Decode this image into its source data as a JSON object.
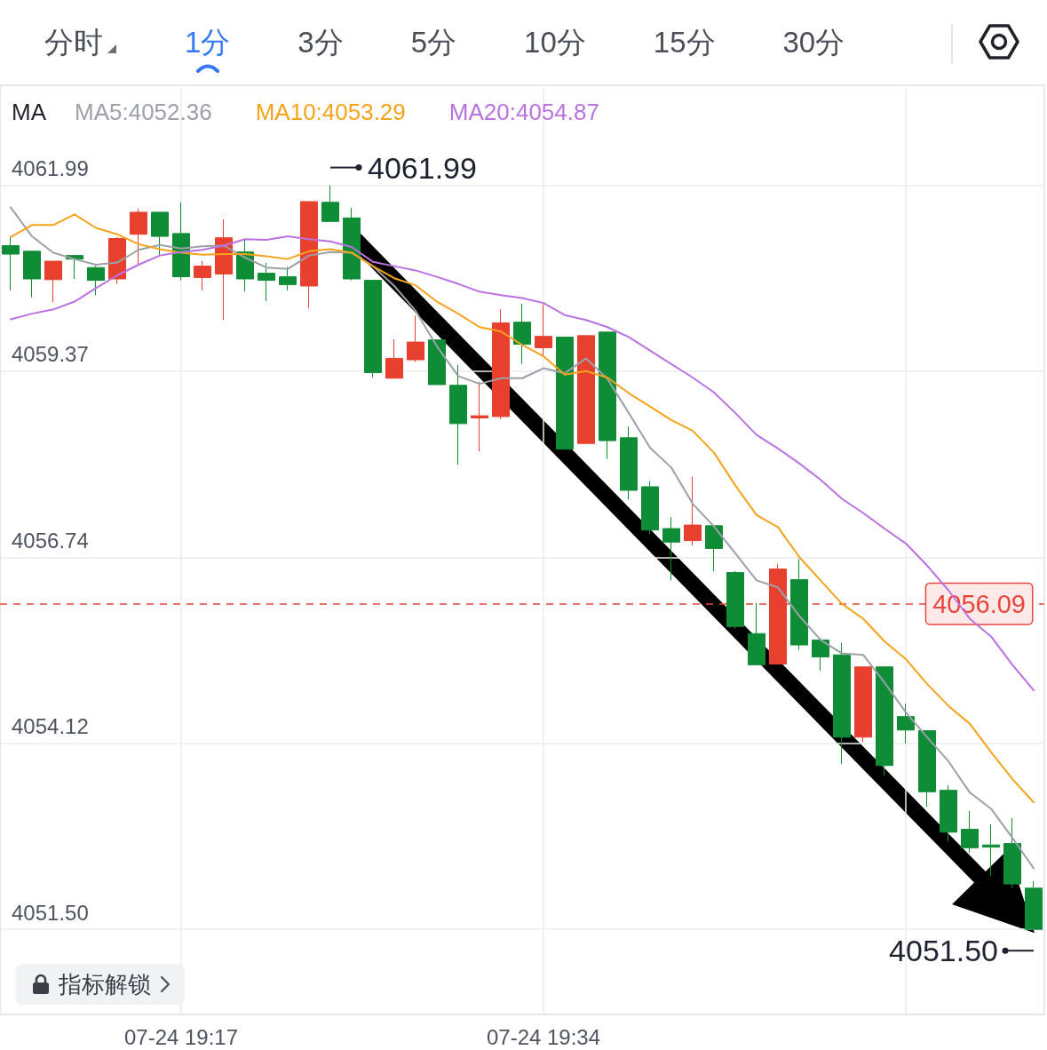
{
  "chart_data": {
    "type": "candlestick",
    "categories": [
      null,
      null,
      null,
      null,
      null,
      null,
      null,
      null,
      "07-24 19:17",
      null,
      null,
      null,
      null,
      null,
      null,
      null,
      null,
      null,
      null,
      null,
      null,
      null,
      null,
      null,
      null,
      "07-24 19:34",
      null,
      null,
      null,
      null,
      null,
      null,
      null,
      null,
      null,
      null,
      null,
      null,
      null,
      null,
      null,
      null,
      null,
      null,
      null,
      null,
      null,
      null,
      null
    ],
    "ohlc": [
      [
        4061.14,
        4061.27,
        4060.51,
        4061.02
      ],
      [
        4061.06,
        4061.06,
        4060.41,
        4060.67
      ],
      [
        4060.66,
        4060.92,
        4060.34,
        4060.92
      ],
      [
        4061.0,
        4061.0,
        4060.67,
        4060.95
      ],
      [
        4060.83,
        4060.85,
        4060.44,
        4060.65
      ],
      [
        4060.67,
        4061.26,
        4060.6,
        4061.24
      ],
      [
        4061.3,
        4061.66,
        4060.88,
        4061.61
      ],
      [
        4061.61,
        4061.61,
        4061.0,
        4061.27
      ],
      [
        4061.31,
        4061.75,
        4060.65,
        4060.7
      ],
      [
        4060.69,
        4060.92,
        4060.51,
        4060.85
      ],
      [
        4060.74,
        4061.51,
        4060.09,
        4061.25
      ],
      [
        4061.05,
        4061.23,
        4060.49,
        4060.67
      ],
      [
        4060.75,
        4060.9,
        4060.36,
        4060.65
      ],
      [
        4060.7,
        4060.84,
        4060.51,
        4060.59
      ],
      [
        4060.57,
        4061.76,
        4060.26,
        4061.76
      ],
      [
        4061.75,
        4061.99,
        4061.47,
        4061.48
      ],
      [
        4061.53,
        4061.67,
        4060.65,
        4060.67
      ],
      [
        4060.65,
        4060.65,
        4059.28,
        4059.35
      ],
      [
        4059.27,
        4059.82,
        4059.27,
        4059.55
      ],
      [
        4059.53,
        4060.15,
        4059.5,
        4059.78
      ],
      [
        4059.81,
        4059.81,
        4059.18,
        4059.18
      ],
      [
        4059.17,
        4059.46,
        4058.05,
        4058.63
      ],
      [
        4058.71,
        4059.22,
        4058.24,
        4058.74
      ],
      [
        4058.73,
        4060.24,
        4058.69,
        4060.05
      ],
      [
        4060.06,
        4060.32,
        4059.47,
        4059.75
      ],
      [
        4059.7,
        4060.31,
        4059.58,
        4059.86
      ],
      [
        4059.85,
        4059.85,
        4058.27,
        4058.27
      ],
      [
        4058.35,
        4059.87,
        4058.35,
        4059.87
      ],
      [
        4059.92,
        4059.92,
        4058.13,
        4058.39
      ],
      [
        4058.43,
        4058.59,
        4057.56,
        4057.69
      ],
      [
        4057.74,
        4057.82,
        4057.07,
        4057.13
      ],
      [
        4057.15,
        4057.31,
        4056.42,
        4056.96
      ],
      [
        4056.98,
        4057.88,
        4056.91,
        4057.2
      ],
      [
        4057.19,
        4057.19,
        4056.55,
        4056.87
      ],
      [
        4056.53,
        4056.55,
        4055.74,
        4055.77
      ],
      [
        4055.67,
        4056.1,
        4055.23,
        4055.23
      ],
      [
        4055.24,
        4056.65,
        4055.24,
        4056.58
      ],
      [
        4056.43,
        4056.72,
        4055.44,
        4055.51
      ],
      [
        4055.58,
        4055.61,
        4055.15,
        4055.34
      ],
      [
        4055.37,
        4055.54,
        4053.83,
        4054.21
      ],
      [
        4054.21,
        4055.2,
        4054.14,
        4055.2
      ],
      [
        4055.2,
        4055.21,
        4053.67,
        4053.81
      ],
      [
        4054.5,
        4054.68,
        4054.12,
        4054.31
      ],
      [
        4054.3,
        4054.3,
        4053.23,
        4053.44
      ],
      [
        4053.46,
        4053.53,
        4052.74,
        4052.87
      ],
      [
        4052.91,
        4053.17,
        4052.58,
        4052.65
      ],
      [
        4052.69,
        4052.98,
        4052.25,
        4052.66
      ],
      [
        4052.71,
        4053.07,
        4052.08,
        4052.14
      ],
      [
        4052.08,
        4052.18,
        4051.5,
        4051.5
      ]
    ],
    "colors": [
      "#0e8c36",
      "#0e8c36",
      "#e8402f",
      "#0e8c36",
      "#0e8c36",
      "#e8402f",
      "#e8402f",
      "#0e8c36",
      "#0e8c36",
      "#e8402f",
      "#e8402f",
      "#0e8c36",
      "#0e8c36",
      "#0e8c36",
      "#e8402f",
      "#0e8c36",
      "#0e8c36",
      "#0e8c36",
      "#e8402f",
      "#e8402f",
      "#0e8c36",
      "#0e8c36",
      "#e8402f",
      "#e8402f",
      "#0e8c36",
      "#e8402f",
      "#0e8c36",
      "#e8402f",
      "#0e8c36",
      "#0e8c36",
      "#0e8c36",
      "#0e8c36",
      "#e8402f",
      "#0e8c36",
      "#0e8c36",
      "#0e8c36",
      "#e8402f",
      "#0e8c36",
      "#0e8c36",
      "#0e8c36",
      "#e8402f",
      "#0e8c36",
      "#0e8c36",
      "#0e8c36",
      "#0e8c36",
      "#0e8c36",
      "#0e8c36",
      "#0e8c36",
      "#0e8c36"
    ],
    "series": [
      {
        "type": "line",
        "name": "MA5:4052.36",
        "color": "#9ca1a9",
        "values": [
          4061.68,
          4061.27,
          4061.04,
          4060.95,
          4060.87,
          4060.9,
          4061.08,
          4061.15,
          4061.1,
          4061.13,
          4061.14,
          4060.97,
          4060.83,
          4060.81,
          4061.0,
          4061.05,
          4061.04,
          4060.85,
          4060.57,
          4060.22,
          4059.72,
          4059.3,
          4059.19,
          4059.27,
          4059.27,
          4059.41,
          4059.34,
          4059.55,
          4059.26,
          4058.78,
          4058.29,
          4058.01,
          4057.5,
          4057.18,
          4056.8,
          4056.42,
          4056.32,
          4055.92,
          4055.58,
          4055.39,
          4055.37,
          4054.98,
          4054.56,
          4054.21,
          4053.87,
          4053.43,
          4053.2,
          4052.79,
          4052.36
        ]
      },
      {
        "type": "line",
        "name": "MA10:4053.29",
        "color": "#f5a31a",
        "values": [
          4061.26,
          4061.43,
          4061.43,
          4061.58,
          4061.39,
          4061.3,
          4061.16,
          4061.09,
          4061.04,
          4061.01,
          4061.02,
          4061.02,
          4060.99,
          4060.95,
          4061.06,
          4061.09,
          4061.04,
          4060.85,
          4060.68,
          4060.58,
          4060.35,
          4060.18,
          4059.99,
          4059.93,
          4059.74,
          4059.58,
          4059.32,
          4059.37,
          4059.28,
          4059.06,
          4058.87,
          4058.68,
          4058.53,
          4058.22,
          4057.76,
          4057.34,
          4057.17,
          4056.75,
          4056.42,
          4056.09,
          4055.88,
          4055.56,
          4055.31,
          4054.96,
          4054.65,
          4054.4,
          4054.0,
          4053.62,
          4053.29
        ]
      },
      {
        "type": "line",
        "name": "MA20:4054.87",
        "color": "#bb72e0",
        "values": [
          4060.1,
          4060.18,
          4060.24,
          4060.35,
          4060.54,
          4060.72,
          4060.87,
          4061.0,
          4061.05,
          4061.08,
          4061.14,
          4061.23,
          4061.22,
          4061.27,
          4061.23,
          4061.2,
          4061.12,
          4060.91,
          4060.85,
          4060.79,
          4060.7,
          4060.6,
          4060.49,
          4060.44,
          4060.4,
          4060.33,
          4060.16,
          4060.09,
          4059.99,
          4059.85,
          4059.66,
          4059.47,
          4059.28,
          4059.07,
          4058.78,
          4058.47,
          4058.28,
          4058.07,
          4057.84,
          4057.57,
          4057.37,
          4057.15,
          4056.94,
          4056.63,
          4056.28,
          4055.88,
          4055.63,
          4055.23,
          4054.87
        ]
      }
    ],
    "ylim": [
      4050.3,
      4063.4
    ],
    "yticks": [
      {
        "value": 4051.5,
        "label": "4051.50"
      },
      4054.12,
      4056.74,
      4059.37,
      4061.99
    ],
    "grid": true,
    "legend": "top left",
    "legend_title": "MA",
    "ref_lines": [
      {
        "axis": "y",
        "value": 4056.09,
        "label": "4056.09",
        "color": "#e8453c",
        "line_style": "dashed"
      }
    ],
    "annotations": [
      "分时",
      "1分",
      "3分",
      "5分",
      "10分",
      "15分",
      "30分",
      "指标解锁",
      "4061.99",
      "4051.50"
    ]
  }
}
